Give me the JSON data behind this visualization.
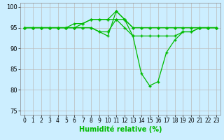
{
  "xlabel": "Humidité relative (%)",
  "background_color": "#cceeff",
  "grid_color": "#bbbbbb",
  "line_color": "#00bb00",
  "marker": "+",
  "xlim": [
    -0.5,
    23.5
  ],
  "ylim": [
    74,
    101
  ],
  "yticks": [
    75,
    80,
    85,
    90,
    95,
    100
  ],
  "xticks": [
    0,
    1,
    2,
    3,
    4,
    5,
    6,
    7,
    8,
    9,
    10,
    11,
    12,
    13,
    14,
    15,
    16,
    17,
    18,
    19,
    20,
    21,
    22,
    23
  ],
  "series": [
    [
      95,
      95,
      95,
      95,
      95,
      95,
      95,
      96,
      97,
      97,
      97,
      97,
      97,
      95,
      95,
      95,
      95,
      95,
      95,
      95,
      95,
      95,
      95,
      95
    ],
    [
      95,
      95,
      95,
      95,
      95,
      95,
      96,
      96,
      97,
      97,
      97,
      99,
      97,
      95,
      95,
      95,
      95,
      95,
      95,
      95,
      95,
      95,
      95,
      95
    ],
    [
      95,
      95,
      95,
      95,
      95,
      95,
      95,
      95,
      95,
      94,
      94,
      97,
      95,
      93,
      93,
      93,
      93,
      93,
      93,
      94,
      94,
      95,
      95,
      95
    ],
    [
      95,
      95,
      95,
      95,
      95,
      95,
      95,
      95,
      95,
      94,
      93,
      99,
      97,
      93,
      84,
      81,
      82,
      89,
      92,
      94,
      94,
      95,
      95,
      95
    ]
  ],
  "xlabel_fontsize": 7,
  "tick_fontsize": 5.5,
  "ytick_fontsize": 6
}
